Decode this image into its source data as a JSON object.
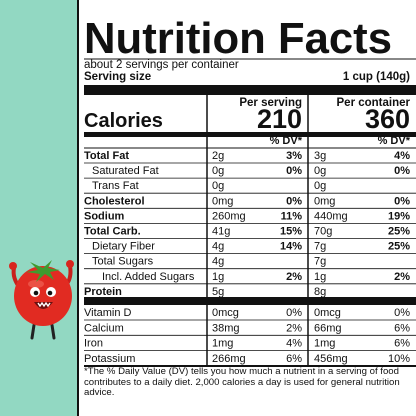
{
  "label": {
    "title": "Nutrition Facts",
    "servings": "about 2 servings per container",
    "serving_size_label": "Serving size",
    "serving_size_value": "1 cup (140g)",
    "per_serving": "Per serving",
    "per_container": "Per container",
    "calories_label": "Calories",
    "calories_serving": 210,
    "calories_container": 360,
    "dv_header": "% DV*",
    "nutrients": [
      {
        "name": "Total Fat",
        "serving": "2g",
        "serving_dv": "3%",
        "container": "3g",
        "container_dv": "4%"
      },
      {
        "name": "Saturated Fat",
        "serving": "0g",
        "serving_dv": "0%",
        "container": "0g",
        "container_dv": "0%"
      },
      {
        "name": "Trans Fat",
        "serving": "0g",
        "container": "0g"
      },
      {
        "name": "Cholesterol",
        "serving": "0mg",
        "serving_dv": "0%",
        "container": "0mg",
        "container_dv": "0%"
      },
      {
        "name": "Sodium",
        "serving": "260mg",
        "serving_dv": "11%",
        "container": "440mg",
        "container_dv": "19%"
      },
      {
        "name": "Total Carb.",
        "serving": "41g",
        "serving_dv": "15%",
        "container": "70g",
        "container_dv": "25%"
      },
      {
        "name": "Dietary Fiber",
        "serving": "4g",
        "serving_dv": "14%",
        "container": "7g",
        "container_dv": "25%"
      },
      {
        "name": "Total Sugars",
        "serving": "4g",
        "container": "7g"
      },
      {
        "name": "Incl. Added Sugars",
        "serving": "1g",
        "serving_dv": "2%",
        "container": "1g",
        "container_dv": "2%"
      },
      {
        "name": "Protein",
        "serving": "5g",
        "container": "8g"
      }
    ],
    "vitamins": [
      {
        "name": "Vitamin D",
        "serving": "0mcg",
        "serving_dv": "0%",
        "container": "0mcg",
        "container_dv": "0%"
      },
      {
        "name": "Calcium",
        "serving": "38mg",
        "serving_dv": "2%",
        "container": "66mg",
        "container_dv": "6%"
      },
      {
        "name": "Iron",
        "serving": "1mg",
        "serving_dv": "4%",
        "container": "1mg",
        "container_dv": "6%"
      },
      {
        "name": "Potassium",
        "serving": "266mg",
        "serving_dv": "6%",
        "container": "456mg",
        "container_dv": "10%"
      }
    ],
    "footnote": "*The % Daily Value (DV) tells you how much a nutrient in a serving of food contributes to a daily diet. 2,000 calories a day is used for general nutrition advice."
  }
}
